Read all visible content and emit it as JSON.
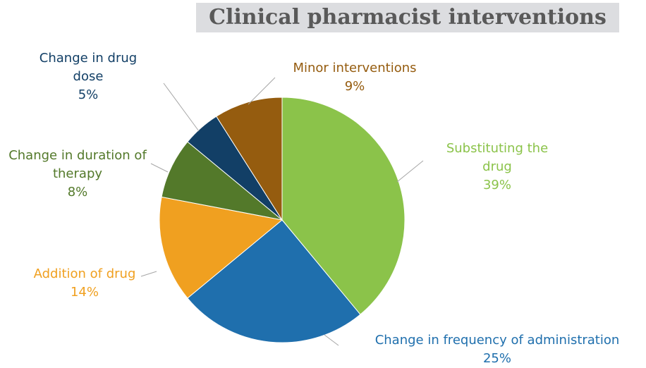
{
  "chart_data": {
    "type": "pie",
    "title": "Clinical pharmacist interventions",
    "categories": [
      "Substituting the drug",
      "Change in frequency of administration",
      "Addition of drug",
      "Change in duration of therapy",
      "Change in drug dose",
      "Minor interventions"
    ],
    "values": [
      39,
      25,
      14,
      8,
      5,
      9
    ],
    "value_labels": [
      "39%",
      "25%",
      "14%",
      "8%",
      "5%",
      "9%"
    ],
    "colors": [
      "#8bc34a",
      "#1f6fad",
      "#f0a020",
      "#53792a",
      "#123f66",
      "#955c0f"
    ]
  }
}
